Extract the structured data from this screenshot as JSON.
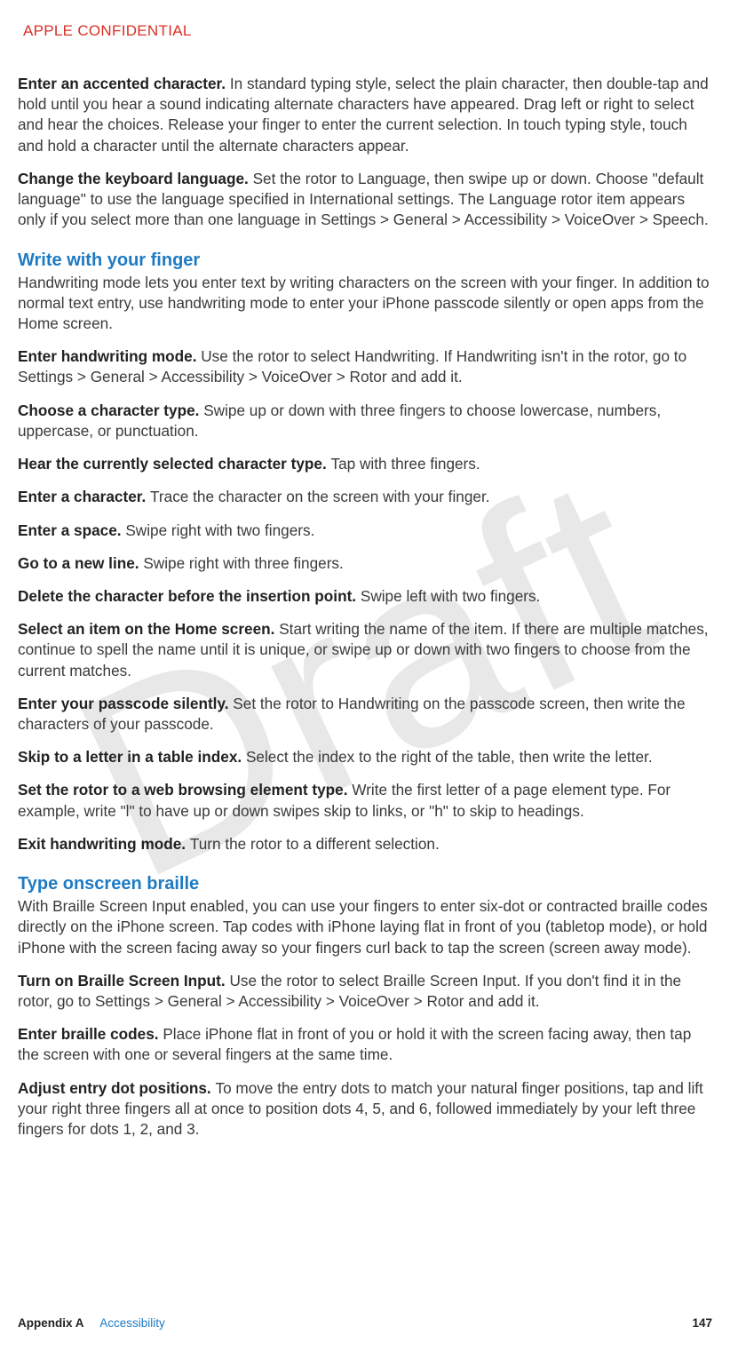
{
  "confidential": "APPLE CONFIDENTIAL",
  "watermark": "Draft",
  "p1_b": "Enter an accented character. ",
  "p1": "In standard typing style, select the plain character, then double-tap and hold until you hear a sound indicating alternate characters have appeared. Drag left or right to select and hear the choices. Release your finger to enter the current selection. In touch typing style, touch and hold a character until the alternate characters appear.",
  "p2_b": "Change the keyboard language. ",
  "p2": "Set the rotor to Language, then swipe up or down. Choose \"default language\" to use the language specified in International settings. The Language rotor item appears only if you select more than one language in Settings > General > Accessibility > VoiceOver > Speech.",
  "h1": "Write with your finger",
  "p3": "Handwriting mode lets you enter text by writing characters on the screen with your finger. In addition to normal text entry, use handwriting mode to enter your iPhone passcode silently or open apps from the Home screen.",
  "p4_b": "Enter handwriting mode. ",
  "p4": "Use the rotor to select Handwriting. If Handwriting isn't in the rotor, go to Settings > General > Accessibility > VoiceOver > Rotor and add it.",
  "p5_b": "Choose a character type. ",
  "p5": "Swipe up or down with three fingers to choose lowercase, numbers, uppercase, or punctuation.",
  "p6_b": "Hear the currently selected character type. ",
  "p6": "Tap with three fingers.",
  "p7_b": "Enter a character. ",
  "p7": "Trace the character on the screen with your finger.",
  "p8_b": "Enter a space. ",
  "p8": "Swipe right with two fingers.",
  "p9_b": "Go to a new line. ",
  "p9": "Swipe right with three fingers.",
  "p10_b": "Delete the character before the insertion point. ",
  "p10": "Swipe left with two fingers.",
  "p11_b": "Select an item on the Home screen. ",
  "p11": "Start writing the name of the item. If there are multiple matches, continue to spell the name until it is unique, or swipe up or down with two fingers to choose from the current matches.",
  "p12_b": "Enter your passcode silently. ",
  "p12": "Set the rotor to Handwriting on the passcode screen, then write the characters of your passcode.",
  "p13_b": "Skip to a letter in a table index. ",
  "p13": "Select the index to the right of the table, then write the letter.",
  "p14_b": "Set the rotor to a web browsing element type. ",
  "p14": "Write the first letter of a page element type. For example, write \"l\" to have up or down swipes skip to links, or \"h\" to skip to headings.",
  "p15_b": "Exit handwriting mode. ",
  "p15": "Turn the rotor to a different selection.",
  "h2": "Type onscreen braille",
  "p16": "With Braille Screen Input enabled, you can use your fingers to enter six-dot or contracted braille codes directly on the iPhone screen. Tap codes with iPhone laying flat in front of you (tabletop mode), or hold iPhone with the screen facing away so your fingers curl back to tap the screen (screen away mode).",
  "p17_b": "Turn on Braille Screen Input. ",
  "p17": "Use the rotor to select Braille Screen Input. If you don't find it in the rotor, go to Settings > General > Accessibility > VoiceOver > Rotor and add it.",
  "p18_b": "Enter braille codes. ",
  "p18": "Place iPhone flat in front of you or hold it with the screen facing away, then tap the screen with one or several fingers at the same time.",
  "p19_b": "Adjust entry dot positions. ",
  "p19": "To move the entry dots to match your natural finger positions, tap and lift your right three fingers all at once to position dots 4, 5, and 6, followed immediately by your left three fingers for dots 1, 2, and 3.",
  "footer_appendix": "Appendix A",
  "footer_title": "Accessibility",
  "footer_page": "147"
}
